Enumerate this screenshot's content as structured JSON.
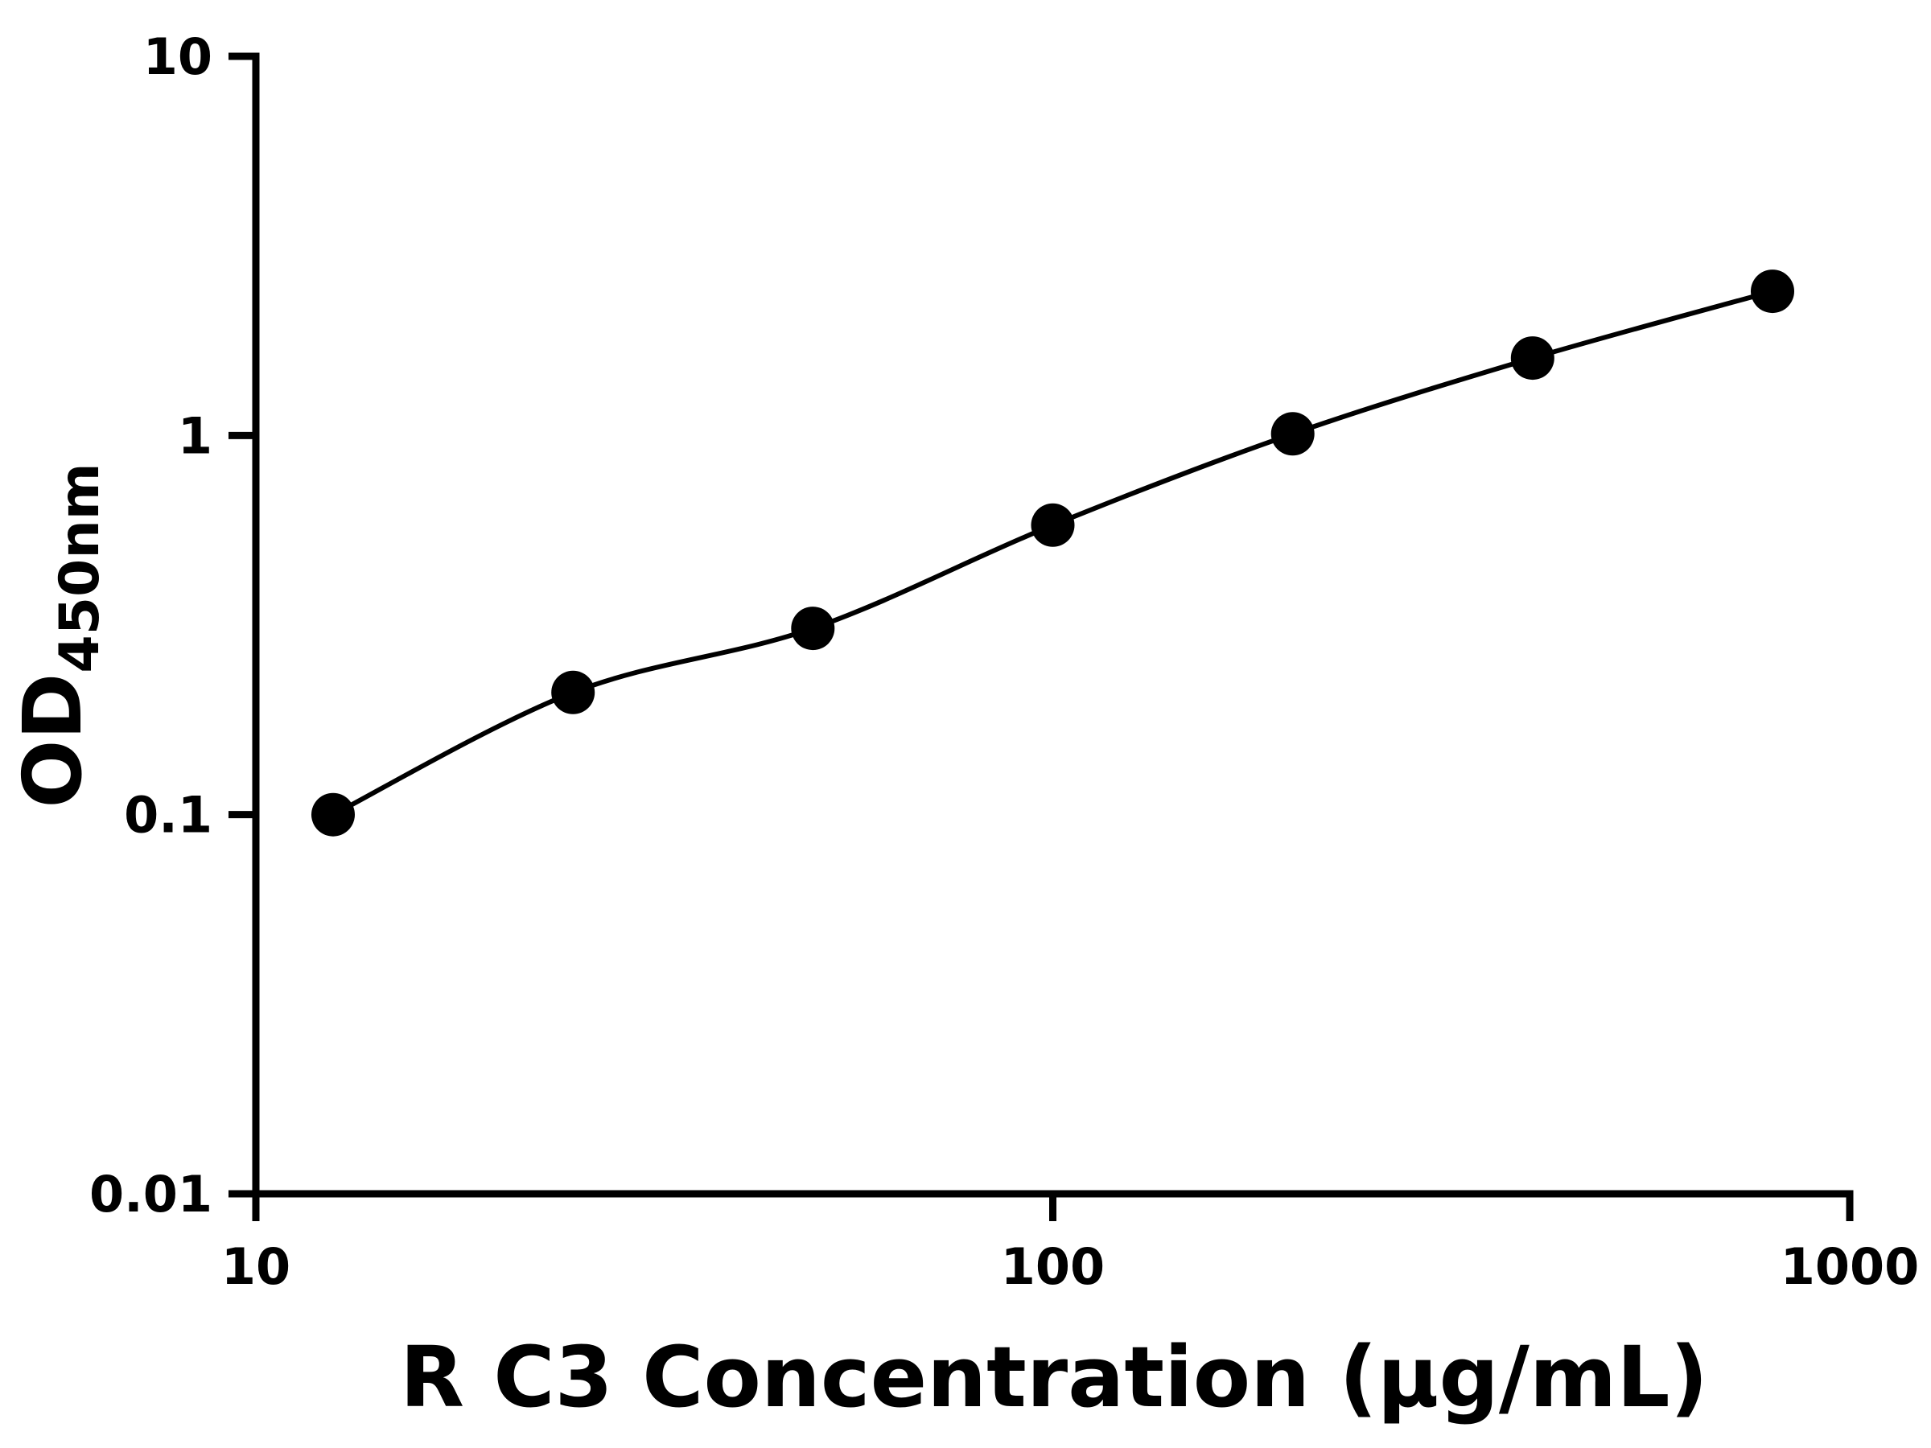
{
  "chart_data": {
    "type": "scatter",
    "title": "",
    "xlabel": "R C3 Concentration (μg/mL)",
    "ylabel_main": "OD",
    "ylabel_sub": "450nm",
    "x_scale": "log",
    "y_scale": "log",
    "xlim": [
      10,
      1000
    ],
    "ylim": [
      0.01,
      10
    ],
    "x": [
      12.5,
      25,
      50,
      100,
      200,
      400,
      800
    ],
    "y": [
      0.1,
      0.21,
      0.31,
      0.58,
      1.01,
      1.6,
      2.4
    ],
    "x_ticks": [
      10,
      100,
      1000
    ],
    "x_tick_labels": [
      "10",
      "100",
      "1000"
    ],
    "y_ticks": [
      10,
      1,
      0.1,
      0.01
    ],
    "y_tick_labels": [
      "10",
      "1",
      "0.1",
      "0.01"
    ],
    "grid": false,
    "legend": null,
    "line_color": "#000000",
    "marker_color": "#000000",
    "axis_color": "#000000",
    "background": "#ffffff"
  }
}
